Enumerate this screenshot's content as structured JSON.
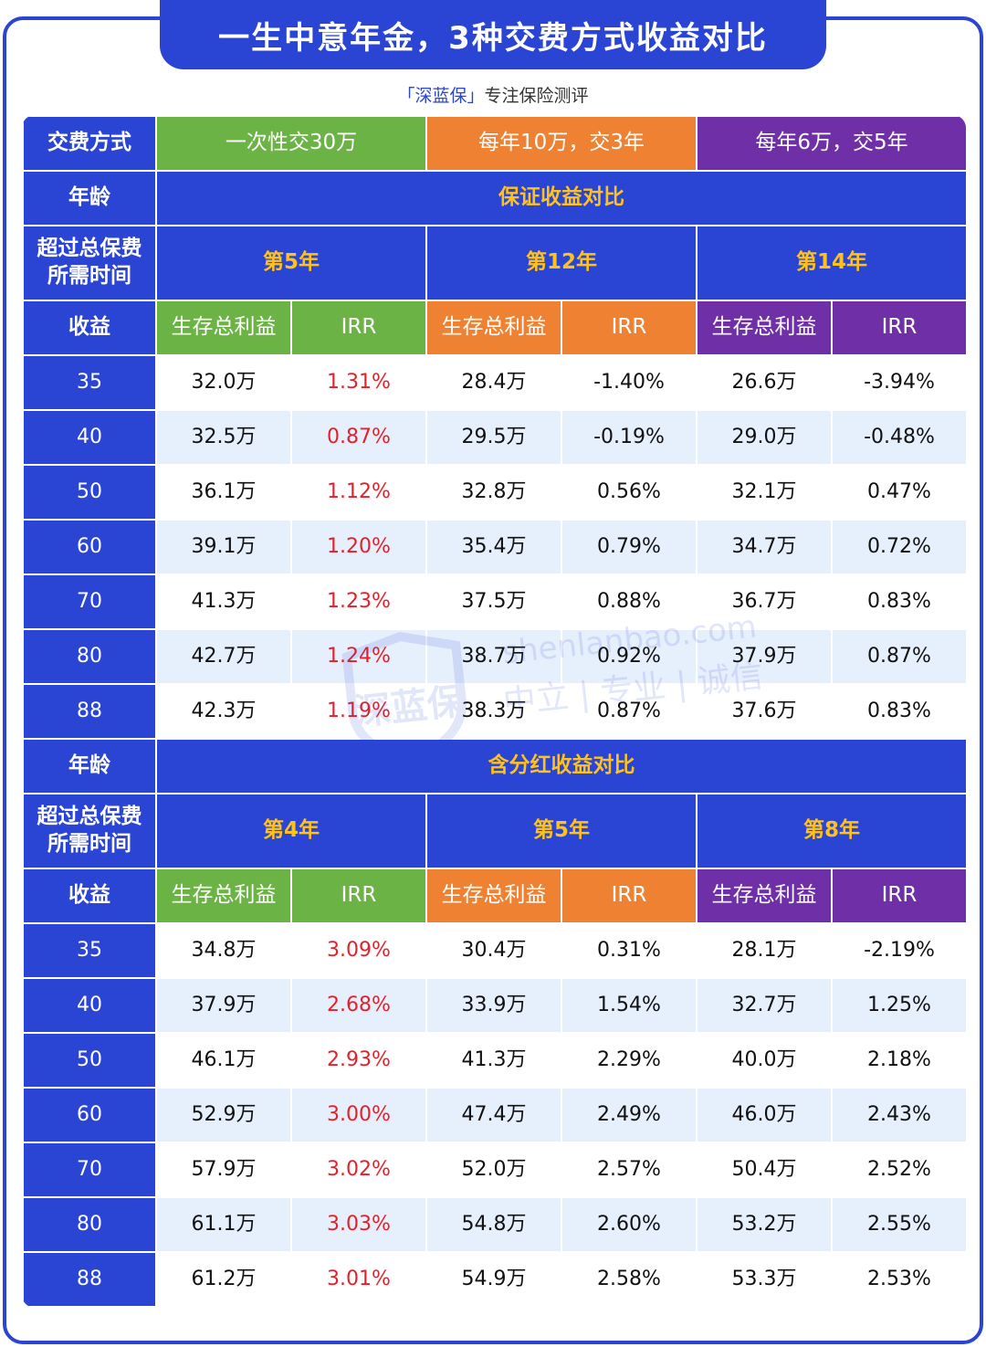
{
  "title": "一生中意年金，3种交费方式收益对比",
  "subtitle": {
    "brand": "「深蓝保」",
    "slogan": "专注保险测评"
  },
  "watermark": {
    "brand": "深蓝保",
    "domain": "shenlanbao.com",
    "motto": "中立 | 专业 | 诚信"
  },
  "header": {
    "label": "交费方式",
    "plans": [
      "一次性交30万",
      "每年10万，交3年",
      "每年6万，交5年"
    ]
  },
  "columns": {
    "age": "年龄",
    "payback_line1": "超过总保费",
    "payback_line2": "所需时间",
    "income": "收益",
    "benefit": "生存总利益",
    "irr": "IRR"
  },
  "colors": {
    "blue": "#2a45d3",
    "green": "#6cb345",
    "orange": "#ef8232",
    "purple": "#6f2fa6",
    "gold": "#ffc21a",
    "red": "#e6202a"
  },
  "sections": [
    {
      "title": "保证收益对比",
      "payback": [
        "第5年",
        "第12年",
        "第14年"
      ],
      "rows": [
        [
          "35",
          "32.0万",
          "1.31%",
          "28.4万",
          "-1.40%",
          "26.6万",
          "-3.94%"
        ],
        [
          "40",
          "32.5万",
          "0.87%",
          "29.5万",
          "-0.19%",
          "29.0万",
          "-0.48%"
        ],
        [
          "50",
          "36.1万",
          "1.12%",
          "32.8万",
          "0.56%",
          "32.1万",
          "0.47%"
        ],
        [
          "60",
          "39.1万",
          "1.20%",
          "35.4万",
          "0.79%",
          "34.7万",
          "0.72%"
        ],
        [
          "70",
          "41.3万",
          "1.23%",
          "37.5万",
          "0.88%",
          "36.7万",
          "0.83%"
        ],
        [
          "80",
          "42.7万",
          "1.24%",
          "38.7万",
          "0.92%",
          "37.9万",
          "0.87%"
        ],
        [
          "88",
          "42.3万",
          "1.19%",
          "38.3万",
          "0.87%",
          "37.6万",
          "0.83%"
        ]
      ]
    },
    {
      "title": "含分红收益对比",
      "payback": [
        "第4年",
        "第5年",
        "第8年"
      ],
      "rows": [
        [
          "35",
          "34.8万",
          "3.09%",
          "30.4万",
          "0.31%",
          "28.1万",
          "-2.19%"
        ],
        [
          "40",
          "37.9万",
          "2.68%",
          "33.9万",
          "1.54%",
          "32.7万",
          "1.25%"
        ],
        [
          "50",
          "46.1万",
          "2.93%",
          "41.3万",
          "2.29%",
          "40.0万",
          "2.18%"
        ],
        [
          "60",
          "52.9万",
          "3.00%",
          "47.4万",
          "2.49%",
          "46.0万",
          "2.43%"
        ],
        [
          "70",
          "57.9万",
          "3.02%",
          "52.0万",
          "2.57%",
          "50.4万",
          "2.52%"
        ],
        [
          "80",
          "61.1万",
          "3.03%",
          "54.8万",
          "2.60%",
          "53.2万",
          "2.55%"
        ],
        [
          "88",
          "61.2万",
          "3.01%",
          "54.9万",
          "2.58%",
          "53.3万",
          "2.53%"
        ]
      ]
    }
  ]
}
